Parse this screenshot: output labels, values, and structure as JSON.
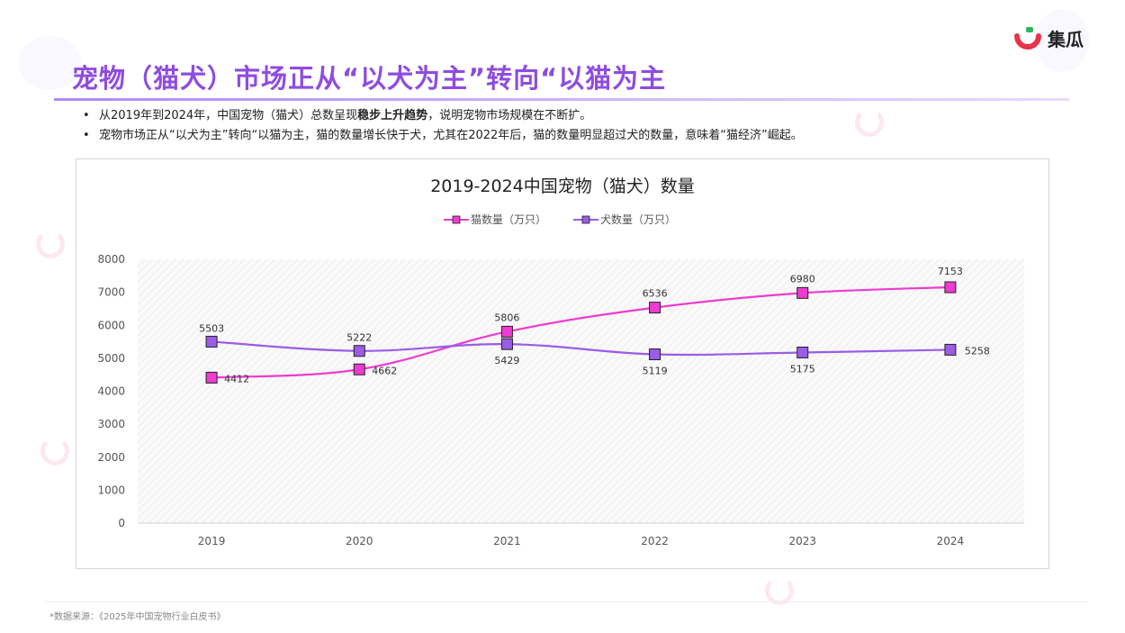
{
  "brand": {
    "name": "集瓜"
  },
  "title": "宠物（猫犬）市场正从“以犬为主”转向“以猫为主",
  "bullets": [
    {
      "pre": "从2019年到2024年，中国宠物（猫犬）总数呈现",
      "bold": "稳步上升趋势",
      "post": "，说明宠物市场规模在不断扩。"
    },
    {
      "pre": "宠物市场正从“以犬为主”转向“以猫为主，猫的数量增长快于犬，尤其在2022年后，猫的数量明显超过犬的数量，意味着“猫经济”崛起。",
      "bold": "",
      "post": ""
    }
  ],
  "source": "*数据来源：《2025年中国宠物行业白皮书》",
  "colors": {
    "accent": "#8f4ce0",
    "cat": "#ee3bd0",
    "dog": "#9b5ce6"
  },
  "chart_data": {
    "type": "line",
    "title": "2019-2024中国宠物（猫犬）数量",
    "categories": [
      "2019",
      "2020",
      "2021",
      "2022",
      "2023",
      "2024"
    ],
    "series": [
      {
        "name": "猫数量（万只）",
        "values": [
          4412,
          4662,
          5806,
          6536,
          6980,
          7153
        ],
        "color": "#ee3bd0"
      },
      {
        "name": "犬数量（万只）",
        "values": [
          5503,
          5222,
          5429,
          5119,
          5175,
          5258
        ],
        "color": "#9b5ce6"
      }
    ],
    "ylim": [
      0,
      8000
    ],
    "yticks": [
      0,
      1000,
      2000,
      3000,
      4000,
      5000,
      6000,
      7000,
      8000
    ],
    "legend": "top",
    "grid": false
  }
}
